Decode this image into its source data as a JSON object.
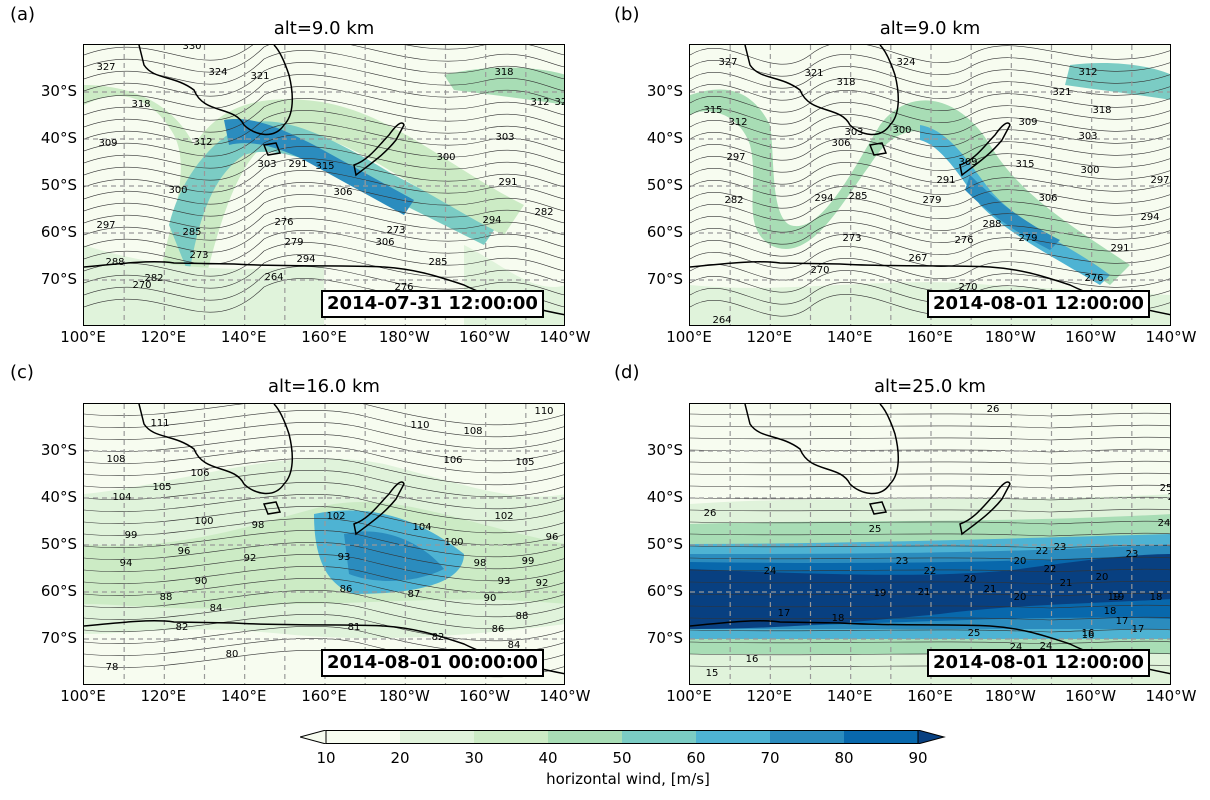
{
  "colorbar": {
    "ticks": [
      "10",
      "20",
      "30",
      "40",
      "50",
      "60",
      "70",
      "80",
      "90"
    ],
    "colors": [
      "#f7fcf0",
      "#e0f3db",
      "#ccebc5",
      "#a8ddb5",
      "#7bccc4",
      "#4eb3d3",
      "#2b8cbe",
      "#0868ac",
      "#084081"
    ],
    "label": "horizontal wind, [m/s]"
  },
  "axes": {
    "lon_labels": [
      "100°E",
      "120°E",
      "140°E",
      "160°E",
      "180°W",
      "160°W",
      "140°W"
    ],
    "lat_labels": [
      "30°S",
      "40°S",
      "50°S",
      "60°S",
      "70°S"
    ]
  },
  "panels": [
    {
      "label": "(a)",
      "title": "alt=9.0 km",
      "stamp": "2014-07-31 12:00:00",
      "contour_labels": [
        "330",
        "327",
        "324",
        "321",
        "318",
        "312",
        "309",
        "303",
        "300",
        "297",
        "291",
        "315",
        "306",
        "285",
        "288",
        "282",
        "270",
        "273",
        "276",
        "279",
        "264",
        "294",
        "273",
        "327",
        "318",
        "312",
        "303",
        "291",
        "282",
        "300",
        "306",
        "294",
        "285",
        "276"
      ]
    },
    {
      "label": "(b)",
      "title": "alt=9.0 km",
      "stamp": "2014-08-01 12:00:00",
      "contour_labels": [
        "327",
        "321",
        "318",
        "324",
        "315",
        "312",
        "297",
        "306",
        "303",
        "300",
        "282",
        "294",
        "285",
        "279",
        "276",
        "273",
        "270",
        "267",
        "264",
        "309",
        "315",
        "306",
        "291",
        "288",
        "279",
        "276",
        "270",
        "291",
        "294",
        "297",
        "300",
        "303",
        "312",
        "318",
        "321",
        "309"
      ]
    },
    {
      "label": "(c)",
      "title": "alt=16.0 km",
      "stamp": "2014-08-01 00:00:00",
      "contour_labels": [
        "111",
        "108",
        "106",
        "105",
        "104",
        "100",
        "98",
        "99",
        "96",
        "94",
        "92",
        "90",
        "88",
        "84",
        "82",
        "80",
        "78",
        "110",
        "102",
        "93",
        "86",
        "87",
        "104",
        "100",
        "98",
        "93",
        "90",
        "88",
        "86",
        "84",
        "82",
        "81",
        "106",
        "108",
        "105",
        "102",
        "99",
        "96",
        "92",
        "110"
      ]
    },
    {
      "label": "(d)",
      "title": "alt=25.0 km",
      "stamp": "2014-08-01 12:00:00",
      "contour_labels": [
        "26",
        "25",
        "24",
        "23",
        "22",
        "21",
        "20",
        "19",
        "18",
        "17",
        "16",
        "15",
        "26",
        "25",
        "24",
        "23",
        "22",
        "21",
        "20",
        "19",
        "18",
        "17",
        "16",
        "24",
        "23",
        "22",
        "20",
        "21",
        "20",
        "19",
        "18",
        "17",
        "16",
        "24",
        "25",
        "26"
      ]
    }
  ]
}
